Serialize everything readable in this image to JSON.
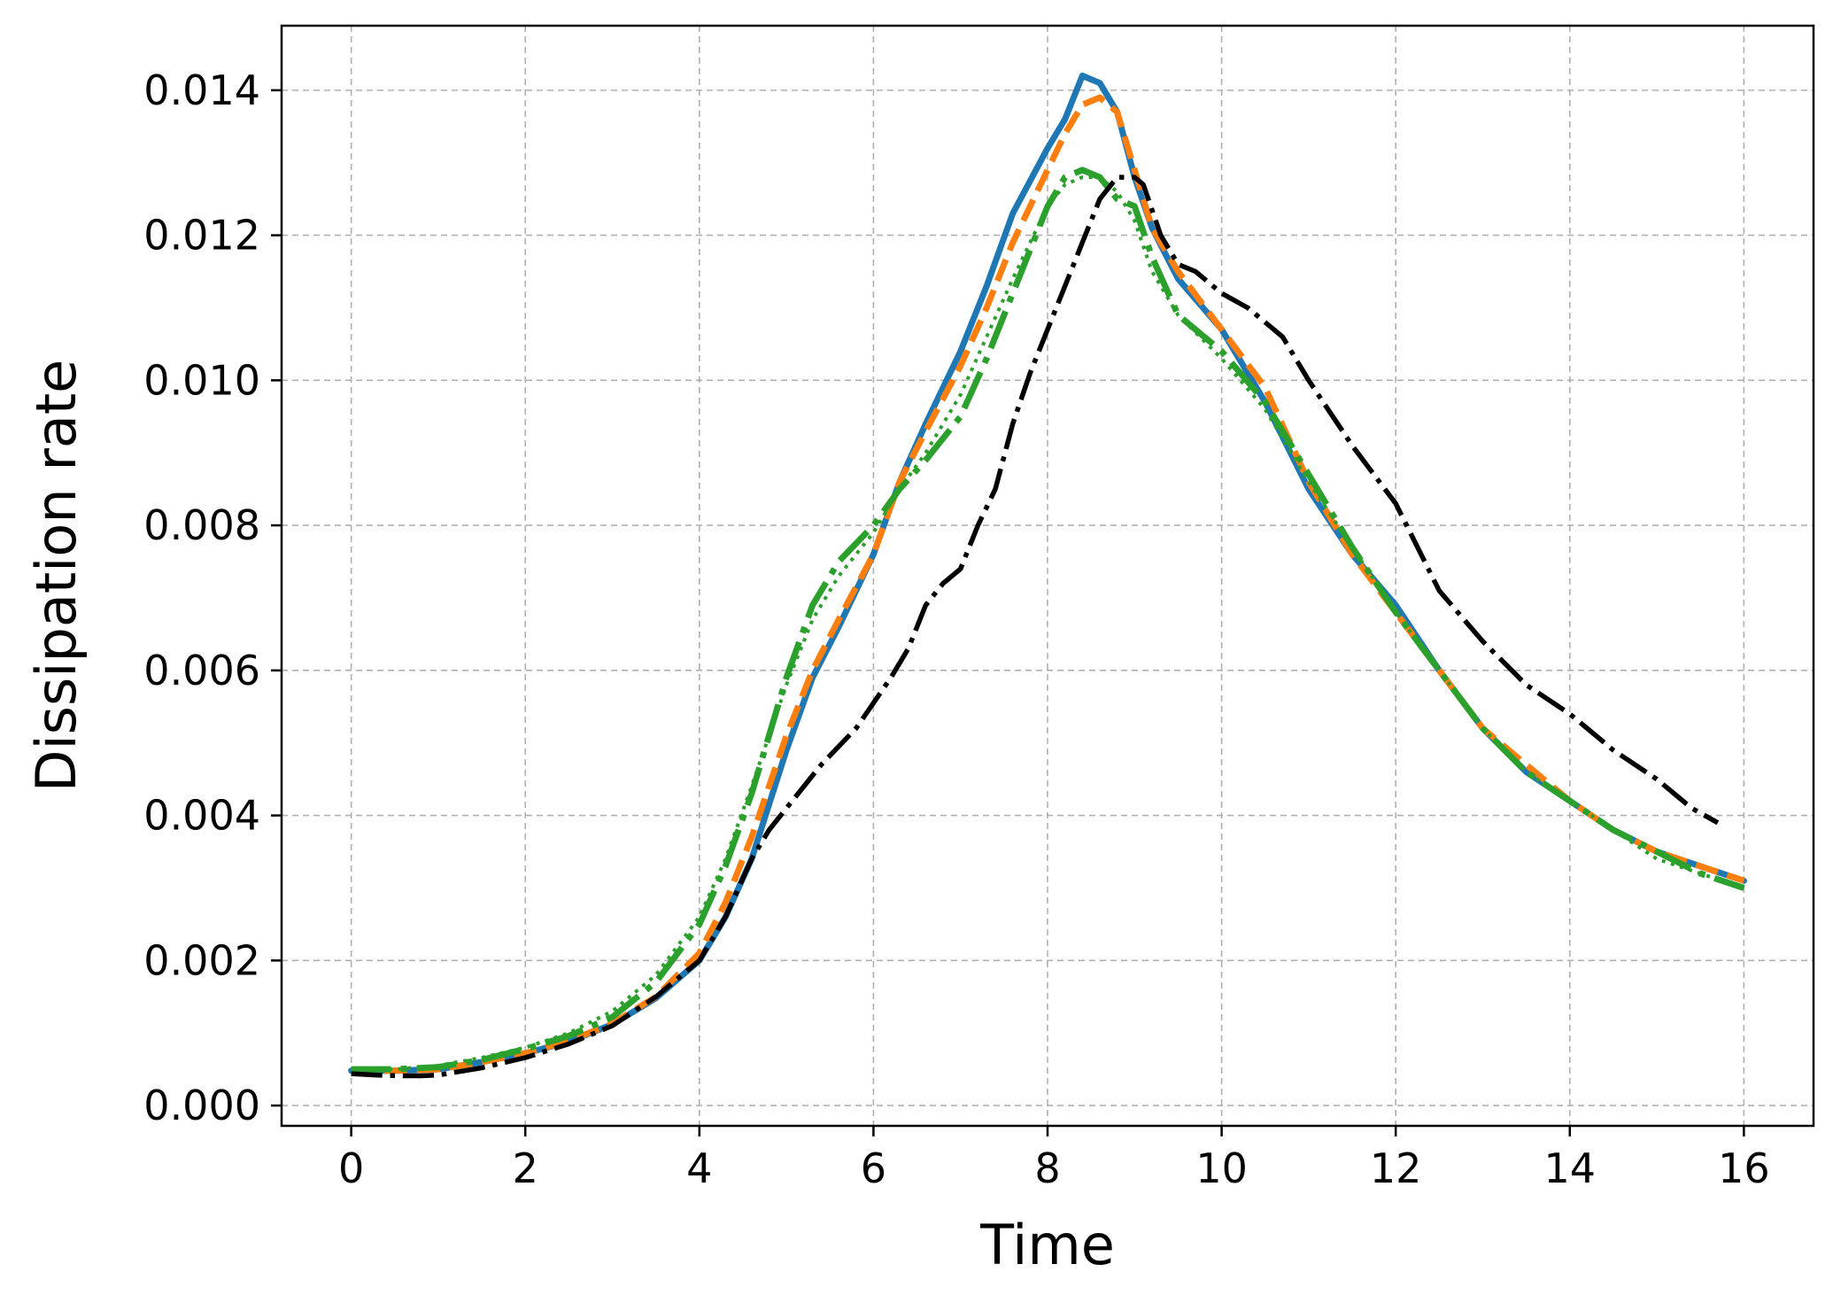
{
  "chart_data": {
    "type": "line",
    "title": "",
    "xlabel": "Time",
    "ylabel": "Dissipation rate",
    "xlim": [
      -0.8,
      16.8
    ],
    "ylim": [
      -0.00028,
      0.01489
    ],
    "xticks": [
      0,
      2,
      4,
      6,
      8,
      10,
      12,
      14,
      16
    ],
    "xtick_labels": [
      "0",
      "2",
      "4",
      "6",
      "8",
      "10",
      "12",
      "14",
      "16"
    ],
    "yticks": [
      0.0,
      0.002,
      0.004,
      0.006,
      0.008,
      0.01,
      0.012,
      0.014
    ],
    "ytick_labels": [
      "0.000",
      "0.002",
      "0.004",
      "0.006",
      "0.008",
      "0.010",
      "0.012",
      "0.014"
    ],
    "grid": true,
    "legend": "none",
    "series": [
      {
        "color": "#1f77b4",
        "style": "solid",
        "width": 7,
        "x": [
          0,
          0.5,
          1,
          1.5,
          2,
          2.5,
          3,
          3.5,
          4,
          4.3,
          4.6,
          5,
          5.3,
          5.6,
          6,
          6.3,
          6.6,
          7,
          7.3,
          7.6,
          8,
          8.2,
          8.4,
          8.6,
          8.8,
          9,
          9.2,
          9.5,
          10,
          10.5,
          11,
          11.5,
          12,
          12.5,
          13,
          13.5,
          14,
          14.5,
          15,
          15.5,
          16
        ],
        "y": [
          0.00048,
          0.00048,
          0.0005,
          0.0006,
          0.00072,
          0.00088,
          0.00112,
          0.00148,
          0.002,
          0.0026,
          0.0034,
          0.0049,
          0.0059,
          0.0066,
          0.0076,
          0.0086,
          0.0094,
          0.0104,
          0.0113,
          0.0123,
          0.0132,
          0.0136,
          0.0142,
          0.0141,
          0.0137,
          0.0128,
          0.0121,
          0.0114,
          0.0107,
          0.0097,
          0.0085,
          0.0076,
          0.0069,
          0.006,
          0.0052,
          0.0046,
          0.0042,
          0.0038,
          0.0035,
          0.0033,
          0.0031
        ]
      },
      {
        "color": "#ff7f0e",
        "style": "dashed",
        "width": 7,
        "x": [
          0,
          0.5,
          1,
          1.5,
          2,
          2.5,
          3,
          3.5,
          4,
          4.3,
          4.6,
          5,
          5.3,
          5.6,
          6,
          6.3,
          6.6,
          7,
          7.3,
          7.6,
          8,
          8.2,
          8.4,
          8.6,
          8.8,
          9,
          9.2,
          9.5,
          10,
          10.5,
          11,
          11.5,
          12,
          12.5,
          13,
          13.5,
          14,
          14.5,
          15,
          15.5,
          16
        ],
        "y": [
          0.00048,
          0.00048,
          0.0005,
          0.0006,
          0.00072,
          0.00089,
          0.00113,
          0.0015,
          0.0021,
          0.0028,
          0.0037,
          0.0051,
          0.006,
          0.0067,
          0.0076,
          0.0086,
          0.0093,
          0.0102,
          0.011,
          0.0119,
          0.0129,
          0.0134,
          0.0138,
          0.0139,
          0.0137,
          0.0129,
          0.0121,
          0.0115,
          0.0107,
          0.0099,
          0.0086,
          0.0076,
          0.0068,
          0.006,
          0.0052,
          0.0047,
          0.0042,
          0.0038,
          0.0035,
          0.0033,
          0.0031
        ]
      },
      {
        "color": "#2ca02c",
        "style": "dashdot",
        "width": 7,
        "x": [
          0,
          0.5,
          1,
          1.5,
          2,
          2.5,
          3,
          3.5,
          4,
          4.3,
          4.6,
          5,
          5.3,
          5.6,
          6,
          6.3,
          6.6,
          7,
          7.3,
          7.6,
          8,
          8.2,
          8.4,
          8.6,
          8.8,
          9,
          9.2,
          9.5,
          10,
          10.5,
          11,
          11.5,
          12,
          12.5,
          13,
          13.5,
          14,
          14.5,
          15,
          15.5,
          16
        ],
        "y": [
          0.0005,
          0.0005,
          0.00053,
          0.00063,
          0.00078,
          0.00096,
          0.00122,
          0.0017,
          0.0025,
          0.0033,
          0.0043,
          0.0059,
          0.0069,
          0.0075,
          0.008,
          0.0085,
          0.0089,
          0.0095,
          0.0103,
          0.0112,
          0.0124,
          0.0128,
          0.0129,
          0.0128,
          0.0125,
          0.0124,
          0.0117,
          0.0109,
          0.0104,
          0.0097,
          0.0087,
          0.0077,
          0.0068,
          0.006,
          0.0052,
          0.0046,
          0.0042,
          0.0038,
          0.0035,
          0.0032,
          0.003
        ]
      },
      {
        "color": "#2ca02c",
        "style": "dotted",
        "width": 4,
        "x": [
          0,
          0.5,
          1,
          1.5,
          2,
          2.5,
          3,
          3.5,
          4,
          4.3,
          4.6,
          5,
          5.3,
          5.6,
          6,
          6.3,
          6.6,
          7,
          7.3,
          7.6,
          8,
          8.2,
          8.4,
          8.6,
          8.8,
          9,
          9.2,
          9.5,
          10,
          10.5,
          11,
          11.5,
          12,
          12.5,
          13,
          13.5,
          14,
          14.5,
          15,
          15.5,
          16
        ],
        "y": [
          0.0005,
          0.0005,
          0.00055,
          0.00066,
          0.0008,
          0.001,
          0.0013,
          0.0018,
          0.0026,
          0.0034,
          0.0044,
          0.0058,
          0.0067,
          0.0073,
          0.0079,
          0.0085,
          0.009,
          0.0098,
          0.0106,
          0.0114,
          0.0124,
          0.0127,
          0.0128,
          0.0128,
          0.0126,
          0.0122,
          0.0115,
          0.0109,
          0.0103,
          0.0096,
          0.0086,
          0.0077,
          0.0068,
          0.006,
          0.0052,
          0.0046,
          0.0042,
          0.0038,
          0.0034,
          0.0032,
          0.003
        ]
      },
      {
        "color": "#000000",
        "style": "dashdot",
        "width": 5.5,
        "x": [
          0,
          0.3,
          0.6,
          0.8,
          1,
          1.5,
          2,
          2.5,
          3,
          3.5,
          4,
          4.3,
          4.6,
          4.8,
          5,
          5.4,
          5.8,
          6.2,
          6.4,
          6.6,
          6.8,
          7,
          7.2,
          7.4,
          7.6,
          7.8,
          8,
          8.2,
          8.4,
          8.6,
          8.8,
          9,
          9.1,
          9.3,
          9.5,
          9.7,
          10,
          10.3,
          10.7,
          11,
          11.5,
          12,
          12.5,
          13,
          13.5,
          14,
          14.5,
          15,
          15.4,
          15.7
        ],
        "y": [
          0.00044,
          0.00042,
          0.00041,
          0.00041,
          0.00042,
          0.00052,
          0.00066,
          0.00085,
          0.0011,
          0.0015,
          0.002,
          0.0026,
          0.0034,
          0.0038,
          0.0041,
          0.0047,
          0.0052,
          0.0059,
          0.0063,
          0.0069,
          0.0072,
          0.0074,
          0.008,
          0.0085,
          0.0094,
          0.0101,
          0.0107,
          0.0113,
          0.0119,
          0.0125,
          0.0128,
          0.0128,
          0.0127,
          0.012,
          0.0116,
          0.0115,
          0.0112,
          0.011,
          0.0106,
          0.01,
          0.0091,
          0.0083,
          0.0071,
          0.0064,
          0.0058,
          0.0054,
          0.0049,
          0.0045,
          0.0041,
          0.0039
        ]
      }
    ]
  }
}
